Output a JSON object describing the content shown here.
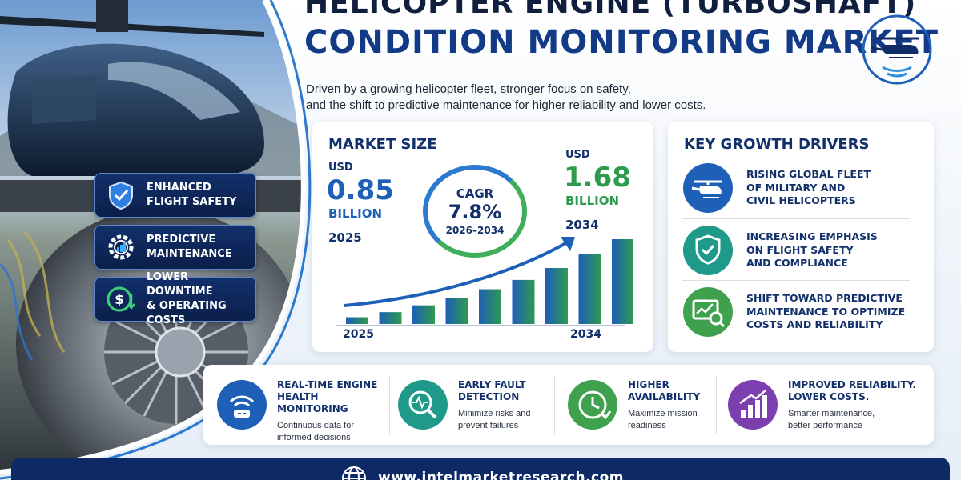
{
  "title": {
    "line1": "HELICOPTER ENGINE (TURBOSHAFT)",
    "line2": "CONDITION MONITORING MARKET",
    "subtitle_line1": "Driven by a growing helicopter fleet, stronger focus on safety,",
    "subtitle_line2": "and the shift to predictive maintenance for higher reliability and lower costs."
  },
  "logo": {
    "icon": "helicopter-signal-icon"
  },
  "features": [
    {
      "line1": "ENHANCED",
      "line2": "FLIGHT SAFETY",
      "icon": "shield-check-icon"
    },
    {
      "line1": "PREDICTIVE",
      "line2": "MAINTENANCE",
      "icon": "gear-chart-icon"
    },
    {
      "line1": "LOWER DOWNTIME",
      "line2": "& OPERATING COSTS",
      "icon": "dollar-down-icon"
    }
  ],
  "market_size": {
    "heading": "MARKET SIZE",
    "start": {
      "currency": "USD",
      "value": "0.85",
      "unit": "BILLION",
      "year": "2025"
    },
    "end": {
      "currency": "USD",
      "value": "1.68",
      "unit": "BILLION",
      "year": "2034"
    },
    "cagr": {
      "label": "CAGR",
      "value": "7.8%",
      "period": "2026–2034"
    },
    "axis_start": "2025",
    "axis_end": "2034",
    "bar_levels": [
      0.08,
      0.14,
      0.22,
      0.31,
      0.41,
      0.52,
      0.66,
      0.83,
      1.0
    ],
    "colors": {
      "blue": "#1e5fb8",
      "green": "#2e9a4e"
    }
  },
  "growth_drivers": {
    "heading": "KEY GROWTH DRIVERS",
    "items": [
      {
        "line1": "RISING GLOBAL FLEET",
        "line2": "OF MILITARY AND",
        "line3": "CIVIL HELICOPTERS",
        "icon": "helicopter-icon",
        "color": "#1e5fb8"
      },
      {
        "line1": "INCREASING EMPHASIS",
        "line2": "ON FLIGHT SAFETY",
        "line3": "AND COMPLIANCE",
        "icon": "shield-check-icon",
        "color": "#1f9a8a"
      },
      {
        "line1": "SHIFT TOWARD PREDICTIVE",
        "line2": "MAINTENANCE TO OPTIMIZE",
        "line3": "COSTS AND RELIABILITY",
        "icon": "chart-magnifier-icon",
        "color": "#3fa14e"
      }
    ]
  },
  "benefits": [
    {
      "h1": "REAL-TIME ENGINE",
      "h2": "HEALTH MONITORING",
      "d1": "Continuous data for",
      "d2": "informed decisions",
      "icon": "wifi-sensor-icon",
      "color": "#1e5fb8"
    },
    {
      "h1": "EARLY FAULT",
      "h2": "DETECTION",
      "d1": "Minimize risks and",
      "d2": "prevent failures",
      "icon": "magnifier-pulse-icon",
      "color": "#1f9a8a"
    },
    {
      "h1": "HIGHER",
      "h2": "AVAILABILITY",
      "d1": "Maximize mission",
      "d2": "readiness",
      "icon": "clock-check-icon",
      "color": "#3fa14e"
    },
    {
      "h1": "IMPROVED RELIABILITY.",
      "h2": "LOWER COSTS.",
      "d1": "Smarter maintenance,",
      "d2": "better performance",
      "icon": "bar-growth-icon",
      "color": "#7b3fb0"
    }
  ],
  "footer": {
    "url": "www.intelmarketresearch.com",
    "icon": "globe-icon"
  }
}
